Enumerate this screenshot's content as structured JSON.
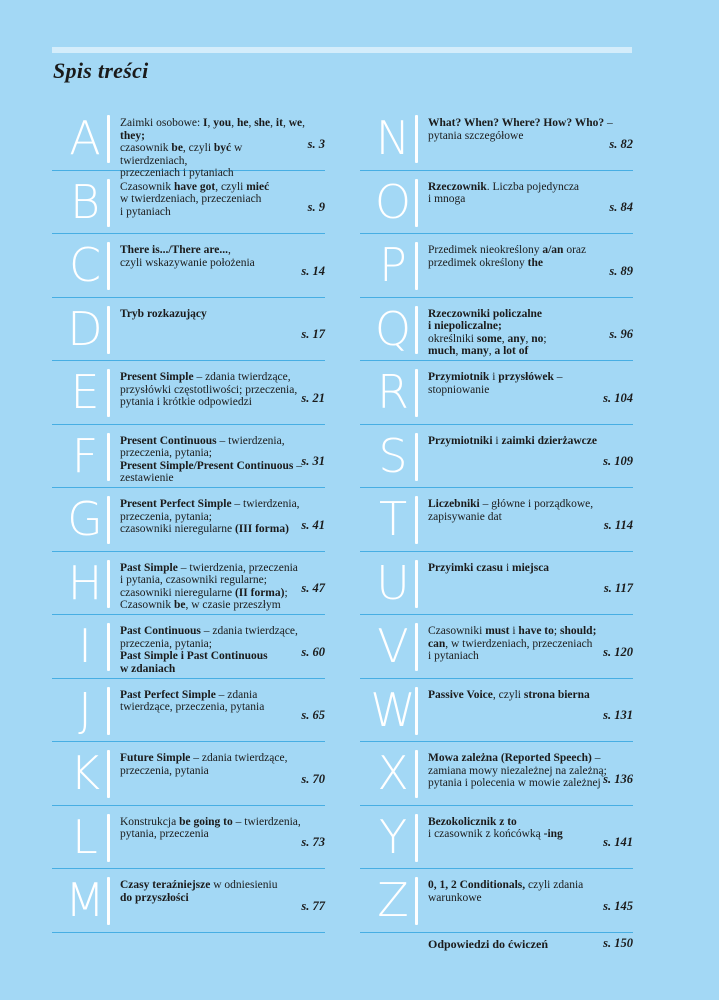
{
  "title": "Spis treści",
  "colors": {
    "background": "#a3d8f5",
    "divider": "#47aee3",
    "letter": "#ffffff"
  },
  "left": [
    {
      "letter": "A",
      "page": "s. 3",
      "lines": [
        [
          {
            "t": "Zaimki osobowe: "
          },
          {
            "t": "I",
            "b": true
          },
          {
            "t": ", "
          },
          {
            "t": "you",
            "b": true
          },
          {
            "t": ", "
          },
          {
            "t": "he",
            "b": true
          },
          {
            "t": ", "
          },
          {
            "t": "she",
            "b": true
          },
          {
            "t": ", "
          },
          {
            "t": "it",
            "b": true
          },
          {
            "t": ", "
          },
          {
            "t": "we",
            "b": true
          },
          {
            "t": ", "
          },
          {
            "t": "they;",
            "b": true
          }
        ],
        [
          {
            "t": "czasownik "
          },
          {
            "t": "be",
            "b": true
          },
          {
            "t": ", czyli "
          },
          {
            "t": "być",
            "b": true
          },
          {
            "t": " w twierdzeniach,"
          }
        ],
        [
          {
            "t": "przeczeniach i pytaniach"
          }
        ]
      ]
    },
    {
      "letter": "B",
      "page": "s. 9",
      "lines": [
        [
          {
            "t": "Czasownik "
          },
          {
            "t": "have got",
            "b": true
          },
          {
            "t": ", czyli "
          },
          {
            "t": "mieć",
            "b": true
          }
        ],
        [
          {
            "t": "w twierdzeniach, przeczeniach"
          }
        ],
        [
          {
            "t": "i pytaniach"
          }
        ]
      ]
    },
    {
      "letter": "C",
      "page": "s. 14",
      "lines": [
        [
          {
            "t": "There is.../There are...",
            "b": true
          },
          {
            "t": ","
          }
        ],
        [
          {
            "t": "czyli wskazywanie położenia"
          }
        ]
      ]
    },
    {
      "letter": "D",
      "page": "s. 17",
      "lines": [
        [
          {
            "t": "Tryb rozkazujący",
            "b": true
          }
        ]
      ]
    },
    {
      "letter": "E",
      "page": "s. 21",
      "lines": [
        [
          {
            "t": "Present Simple",
            "b": true
          },
          {
            "t": " – zdania twierdzące,"
          }
        ],
        [
          {
            "t": "przysłówki częstotliwości; przeczenia,"
          }
        ],
        [
          {
            "t": "pytania i krótkie odpowiedzi"
          }
        ]
      ]
    },
    {
      "letter": "F",
      "page": "s. 31",
      "lines": [
        [
          {
            "t": "Present Continuous",
            "b": true
          },
          {
            "t": " – twierdzenia,"
          }
        ],
        [
          {
            "t": "przeczenia, pytania;"
          }
        ],
        [
          {
            "t": "Present Simple/Present Continuous",
            "b": true
          },
          {
            "t": " –"
          }
        ],
        [
          {
            "t": "zestawienie"
          }
        ]
      ]
    },
    {
      "letter": "G",
      "page": "s. 41",
      "lines": [
        [
          {
            "t": "Present Perfect Simple",
            "b": true
          },
          {
            "t": " – twierdzenia,"
          }
        ],
        [
          {
            "t": "przeczenia, pytania;"
          }
        ],
        [
          {
            "t": "czasowniki nieregularne "
          },
          {
            "t": "(III forma)",
            "b": true
          }
        ]
      ]
    },
    {
      "letter": "H",
      "page": "s. 47",
      "lines": [
        [
          {
            "t": "Past Simple",
            "b": true
          },
          {
            "t": " – twierdzenia, przeczenia"
          }
        ],
        [
          {
            "t": "i pytania, czasowniki regularne;"
          }
        ],
        [
          {
            "t": "czasowniki nieregularne "
          },
          {
            "t": "(II forma)",
            "b": true
          },
          {
            "t": ";"
          }
        ],
        [
          {
            "t": "Czasownik "
          },
          {
            "t": "be",
            "b": true
          },
          {
            "t": ", w czasie przeszłym"
          }
        ]
      ]
    },
    {
      "letter": "I",
      "page": "s. 60",
      "lines": [
        [
          {
            "t": "Past Continuous",
            "b": true
          },
          {
            "t": " – zdania twierdzące,"
          }
        ],
        [
          {
            "t": "przeczenia, pytania;"
          }
        ],
        [
          {
            "t": "Past Simple i Past Continuous",
            "b": true
          }
        ],
        [
          {
            "t": "w zdaniach",
            "b": true
          }
        ]
      ]
    },
    {
      "letter": "J",
      "page": "s. 65",
      "lines": [
        [
          {
            "t": "Past Perfect Simple",
            "b": true
          },
          {
            "t": " – zdania"
          }
        ],
        [
          {
            "t": "twierdzące, przeczenia, pytania"
          }
        ]
      ]
    },
    {
      "letter": "K",
      "page": "s. 70",
      "lines": [
        [
          {
            "t": "Future Simple",
            "b": true
          },
          {
            "t": " – zdania twierdzące,"
          }
        ],
        [
          {
            "t": "przeczenia, pytania"
          }
        ]
      ]
    },
    {
      "letter": "L",
      "page": "s. 73",
      "lines": [
        [
          {
            "t": "Konstrukcja "
          },
          {
            "t": "be going to",
            "b": true
          },
          {
            "t": " – twierdzenia,"
          }
        ],
        [
          {
            "t": "pytania, przeczenia"
          }
        ]
      ]
    },
    {
      "letter": "M",
      "page": "s. 77",
      "lines": [
        [
          {
            "t": "Czasy teraźniejsze",
            "b": true
          },
          {
            "t": " w odniesieniu"
          }
        ],
        [
          {
            "t": "do przyszłości",
            "b": true
          }
        ]
      ]
    }
  ],
  "right": [
    {
      "letter": "N",
      "page": "s. 82",
      "lines": [
        [
          {
            "t": "What? When? Where? How? Who?",
            "b": true
          },
          {
            "t": " –"
          }
        ],
        [
          {
            "t": "pytania szczegółowe"
          }
        ]
      ]
    },
    {
      "letter": "O",
      "page": "s. 84",
      "lines": [
        [
          {
            "t": "Rzeczownik",
            "b": true
          },
          {
            "t": ". Liczba pojedyncza"
          }
        ],
        [
          {
            "t": "i mnoga"
          }
        ]
      ]
    },
    {
      "letter": "P",
      "page": "s. 89",
      "lines": [
        [
          {
            "t": "Przedimek nieokreślony "
          },
          {
            "t": "a/an",
            "b": true
          },
          {
            "t": " oraz"
          }
        ],
        [
          {
            "t": "przedimek określony "
          },
          {
            "t": "the",
            "b": true
          }
        ]
      ]
    },
    {
      "letter": "Q",
      "page": "s. 96",
      "lines": [
        [
          {
            "t": "Rzeczowniki policzalne",
            "b": true
          }
        ],
        [
          {
            "t": "i niepoliczalne;",
            "b": true
          }
        ],
        [
          {
            "t": "określniki "
          },
          {
            "t": "some",
            "b": true
          },
          {
            "t": ", "
          },
          {
            "t": "any",
            "b": true
          },
          {
            "t": ", "
          },
          {
            "t": "no",
            "b": true
          },
          {
            "t": ";"
          }
        ],
        [
          {
            "t": "much",
            "b": true
          },
          {
            "t": ", "
          },
          {
            "t": "many",
            "b": true
          },
          {
            "t": ", "
          },
          {
            "t": "a lot of",
            "b": true
          }
        ]
      ]
    },
    {
      "letter": "R",
      "page": "s. 104",
      "lines": [
        [
          {
            "t": "Przymiotnik",
            "b": true
          },
          {
            "t": " i "
          },
          {
            "t": "przysłówek",
            "b": true
          },
          {
            "t": " –"
          }
        ],
        [
          {
            "t": "stopniowanie"
          }
        ]
      ]
    },
    {
      "letter": "S",
      "page": "s. 109",
      "lines": [
        [
          {
            "t": "Przymiotniki",
            "b": true
          },
          {
            "t": " i "
          },
          {
            "t": "zaimki dzierżawcze",
            "b": true
          }
        ]
      ]
    },
    {
      "letter": "T",
      "page": "s. 114",
      "lines": [
        [
          {
            "t": "Liczebniki",
            "b": true
          },
          {
            "t": " – główne i porządkowe,"
          }
        ],
        [
          {
            "t": "zapisywanie dat"
          }
        ]
      ]
    },
    {
      "letter": "U",
      "page": "s. 117",
      "lines": [
        [
          {
            "t": "Przyimki czasu",
            "b": true
          },
          {
            "t": " i "
          },
          {
            "t": "miejsca",
            "b": true
          }
        ]
      ]
    },
    {
      "letter": "V",
      "page": "s. 120",
      "lines": [
        [
          {
            "t": "Czasowniki "
          },
          {
            "t": "must",
            "b": true
          },
          {
            "t": " i "
          },
          {
            "t": "have to",
            "b": true
          },
          {
            "t": "; "
          },
          {
            "t": "should;",
            "b": true
          }
        ],
        [
          {
            "t": "can",
            "b": true
          },
          {
            "t": ", w twierdzeniach, przeczeniach"
          }
        ],
        [
          {
            "t": "i pytaniach"
          }
        ]
      ]
    },
    {
      "letter": "W",
      "page": "s. 131",
      "lines": [
        [
          {
            "t": "Passive Voice",
            "b": true
          },
          {
            "t": ", czyli "
          },
          {
            "t": "strona bierna",
            "b": true
          }
        ]
      ]
    },
    {
      "letter": "X",
      "page": "s. 136",
      "lines": [
        [
          {
            "t": "Mowa zależna (Reported Speech)",
            "b": true
          },
          {
            "t": " –"
          }
        ],
        [
          {
            "t": "zamiana mowy niezależnej na zależną;"
          }
        ],
        [
          {
            "t": "pytania i polecenia w mowie zależnej"
          }
        ]
      ]
    },
    {
      "letter": "Y",
      "page": "s. 141",
      "lines": [
        [
          {
            "t": "Bezokolicznik z to",
            "b": true
          }
        ],
        [
          {
            "t": "i czasownik z końcówką "
          },
          {
            "t": "-ing",
            "b": true
          }
        ]
      ]
    },
    {
      "letter": "Z",
      "page": "s. 145",
      "lines": [
        [
          {
            "t": "0, 1, 2 Conditionals,",
            "b": true
          },
          {
            "t": " czyli zdania"
          }
        ],
        [
          {
            "t": "warunkowe"
          }
        ]
      ]
    }
  ],
  "answers": {
    "label": "Odpowiedzi do ćwiczeń",
    "page": "s. 150"
  }
}
